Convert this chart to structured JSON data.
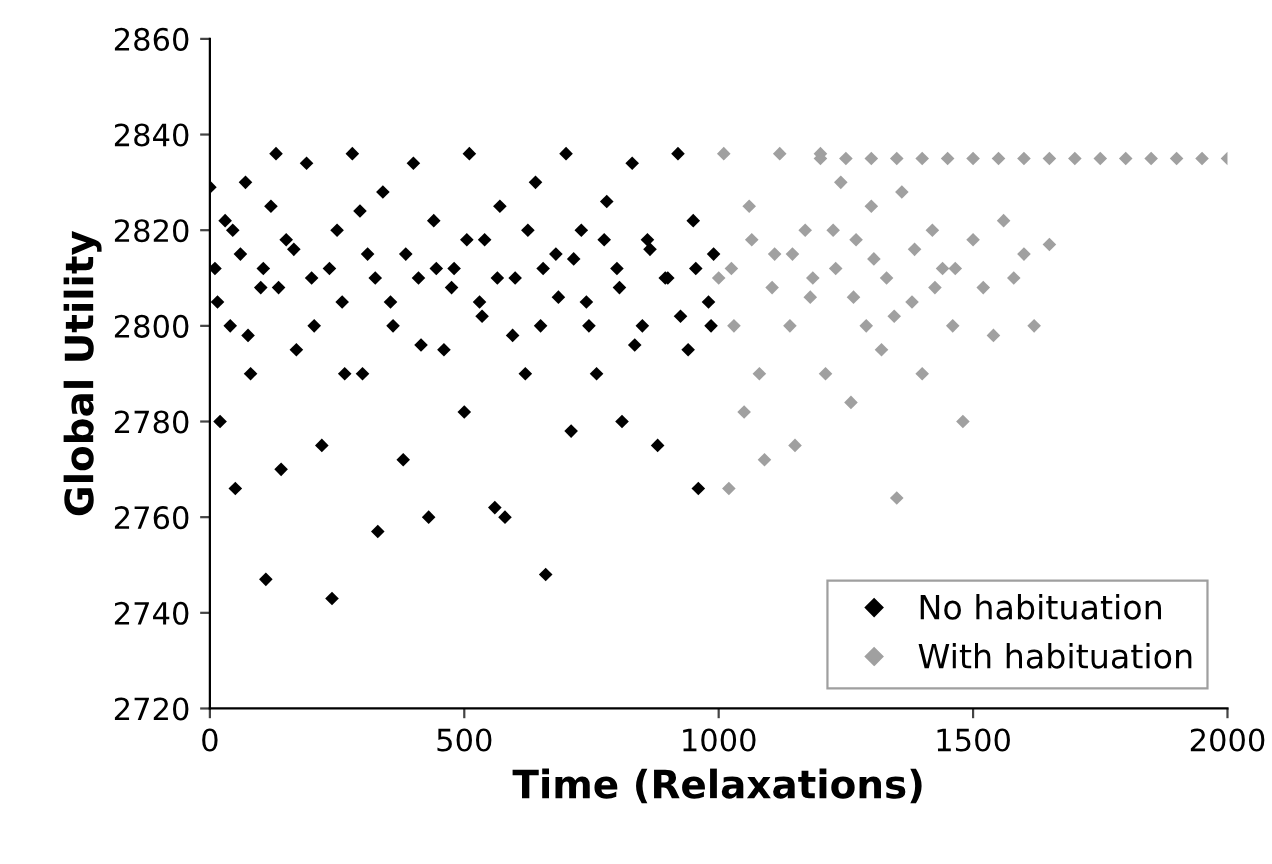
{
  "chart_data": {
    "type": "scatter",
    "xlabel": "Time (Relaxations)",
    "ylabel": "Global Utility",
    "xlim": [
      0,
      2000
    ],
    "xticks": [
      0,
      500,
      1000,
      1500,
      2000
    ],
    "ylim": [
      2720,
      2860
    ],
    "yticks": [
      2720,
      2740,
      2760,
      2780,
      2800,
      2820,
      2840,
      2860
    ],
    "marker": "diamond",
    "legend": "bottom right",
    "grid": false,
    "series": [
      {
        "name": "No habituation",
        "color": "#000000",
        "x": [
          0,
          10,
          20,
          30,
          40,
          50,
          60,
          70,
          80,
          100,
          110,
          120,
          130,
          140,
          150,
          170,
          190,
          200,
          220,
          240,
          250,
          260,
          280,
          300,
          310,
          330,
          340,
          360,
          380,
          400,
          410,
          430,
          440,
          460,
          480,
          500,
          510,
          530,
          540,
          560,
          570,
          580,
          600,
          620,
          640,
          650,
          660,
          680,
          700,
          710,
          730,
          740,
          760,
          780,
          800,
          810,
          830,
          850,
          860,
          880,
          900,
          920,
          940,
          950,
          960,
          980,
          990,
          15,
          45,
          75,
          105,
          135,
          165,
          205,
          235,
          265,
          295,
          325,
          355,
          385,
          415,
          445,
          475,
          505,
          535,
          565,
          595,
          625,
          655,
          685,
          715,
          745,
          775,
          805,
          835,
          865,
          895,
          925,
          955,
          985
        ],
        "values": [
          2829,
          2812,
          2780,
          2822,
          2800,
          2766,
          2815,
          2830,
          2790,
          2808,
          2747,
          2825,
          2836,
          2770,
          2818,
          2795,
          2834,
          2810,
          2775,
          2743,
          2820,
          2805,
          2836,
          2790,
          2815,
          2757,
          2828,
          2800,
          2772,
          2834,
          2810,
          2760,
          2822,
          2795,
          2812,
          2782,
          2836,
          2805,
          2818,
          2762,
          2825,
          2760,
          2810,
          2790,
          2830,
          2800,
          2748,
          2815,
          2836,
          2778,
          2820,
          2805,
          2790,
          2826,
          2812,
          2780,
          2834,
          2800,
          2818,
          2775,
          2810,
          2836,
          2795,
          2822,
          2766,
          2805,
          2815,
          2805,
          2820,
          2798,
          2812,
          2808,
          2816,
          2800,
          2812,
          2790,
          2824,
          2810,
          2805,
          2815,
          2796,
          2812,
          2808,
          2818,
          2802,
          2810,
          2798,
          2820,
          2812,
          2806,
          2814,
          2800,
          2818,
          2808,
          2796,
          2816,
          2810,
          2802,
          2812,
          2800
        ]
      },
      {
        "name": "With habituation",
        "color": "#a0a0a0",
        "x": [
          1000,
          1010,
          1020,
          1030,
          1050,
          1060,
          1080,
          1090,
          1110,
          1120,
          1140,
          1150,
          1170,
          1180,
          1200,
          1210,
          1230,
          1240,
          1260,
          1270,
          1290,
          1300,
          1320,
          1330,
          1350,
          1360,
          1380,
          1400,
          1420,
          1440,
          1460,
          1480,
          1500,
          1520,
          1540,
          1560,
          1580,
          1600,
          1620,
          1650,
          1025,
          1065,
          1105,
          1145,
          1185,
          1225,
          1265,
          1305,
          1345,
          1385,
          1425,
          1465,
          1200,
          1250,
          1300,
          1350,
          1400,
          1450,
          1500,
          1550,
          1600,
          1650,
          1700,
          1750,
          1800,
          1850,
          1900,
          1950,
          2000
        ],
        "values": [
          2810,
          2836,
          2766,
          2800,
          2782,
          2825,
          2790,
          2772,
          2815,
          2836,
          2800,
          2775,
          2820,
          2806,
          2836,
          2790,
          2812,
          2830,
          2784,
          2818,
          2800,
          2825,
          2795,
          2810,
          2764,
          2828,
          2805,
          2790,
          2820,
          2812,
          2800,
          2780,
          2818,
          2808,
          2798,
          2822,
          2810,
          2815,
          2800,
          2817,
          2812,
          2818,
          2808,
          2815,
          2810,
          2820,
          2806,
          2814,
          2802,
          2816,
          2808,
          2812,
          2835,
          2835,
          2835,
          2835,
          2835,
          2835,
          2835,
          2835,
          2835,
          2835,
          2835,
          2835,
          2835,
          2835,
          2835,
          2835,
          2835
        ]
      }
    ]
  }
}
